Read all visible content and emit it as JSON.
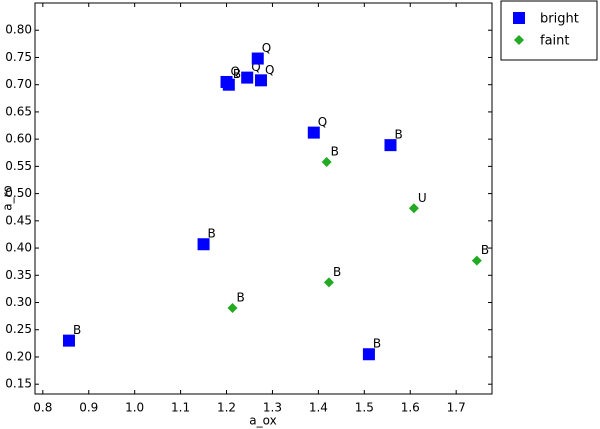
{
  "chart_data": {
    "type": "scatter",
    "x_label": "a_ox",
    "y_label": "a_ro",
    "xlim": [
      0.783,
      1.778
    ],
    "ylim": [
      0.132,
      0.85
    ],
    "xticks": [
      0.8,
      0.9,
      {
        "value": 1,
        "label": "1.0"
      },
      1.1,
      1.2,
      1.3,
      1.4,
      1.5,
      1.6,
      1.7
    ],
    "yticks": [
      0.15,
      {
        "value": 0.2,
        "label": "0.20"
      },
      0.25,
      {
        "value": 0.3,
        "label": "0.30"
      },
      0.35,
      {
        "value": 0.4,
        "label": "0.40"
      },
      0.45,
      {
        "value": 0.5,
        "label": "0.50"
      },
      0.55,
      {
        "value": 0.6,
        "label": "0.60"
      },
      0.65,
      {
        "value": 0.7,
        "label": "0.70"
      },
      0.75,
      {
        "value": 0.8,
        "label": "0.80"
      }
    ],
    "legend": "outside-top-right",
    "series": [
      {
        "name": "bright",
        "color": "#0000ff",
        "marker": "square",
        "x": [
          0.857,
          1.15,
          1.2,
          1.205,
          1.245,
          1.268,
          1.275,
          1.39,
          1.557,
          1.51
        ],
        "values": [
          0.23,
          0.407,
          0.705,
          0.7,
          0.713,
          0.748,
          0.708,
          0.612,
          0.589,
          0.205
        ],
        "labels": [
          "B",
          "B",
          "Q",
          "B",
          "Q",
          "Q",
          "Q",
          "Q",
          "B",
          "B"
        ]
      },
      {
        "name": "faint",
        "color": "#22aa22",
        "marker": "diamond",
        "x": [
          1.213,
          1.418,
          1.423,
          1.608,
          1.745
        ],
        "values": [
          0.29,
          0.558,
          0.337,
          0.473,
          0.377
        ],
        "labels": [
          "B",
          "B",
          "B",
          "U",
          "B"
        ]
      }
    ]
  }
}
